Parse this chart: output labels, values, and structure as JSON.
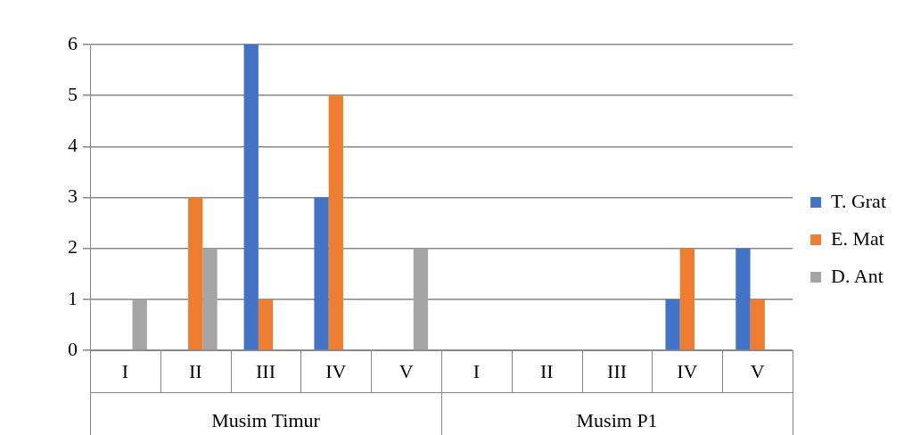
{
  "chart_data": {
    "type": "bar",
    "categories": [
      "I",
      "II",
      "III",
      "IV",
      "V",
      "I",
      "II",
      "III",
      "IV",
      "V"
    ],
    "series": [
      {
        "name": "T. Grat",
        "color": "#4472c4",
        "values": [
          0,
          0,
          6,
          3,
          0,
          0,
          0,
          0,
          1,
          2
        ]
      },
      {
        "name": "E. Mat",
        "color": "#ed7d31",
        "values": [
          0,
          3,
          1,
          5,
          0,
          0,
          0,
          0,
          2,
          1
        ]
      },
      {
        "name": "D. Ant",
        "color": "#a5a5a5",
        "values": [
          1,
          2,
          0,
          0,
          2,
          0,
          0,
          0,
          0,
          0
        ]
      }
    ],
    "ylim": [
      0,
      6
    ],
    "yticks": [
      0,
      1,
      2,
      3,
      4,
      5,
      6
    ],
    "grid": "y",
    "legend": "right",
    "annotations": [
      "Musim Timur",
      "Musim P1"
    ]
  }
}
